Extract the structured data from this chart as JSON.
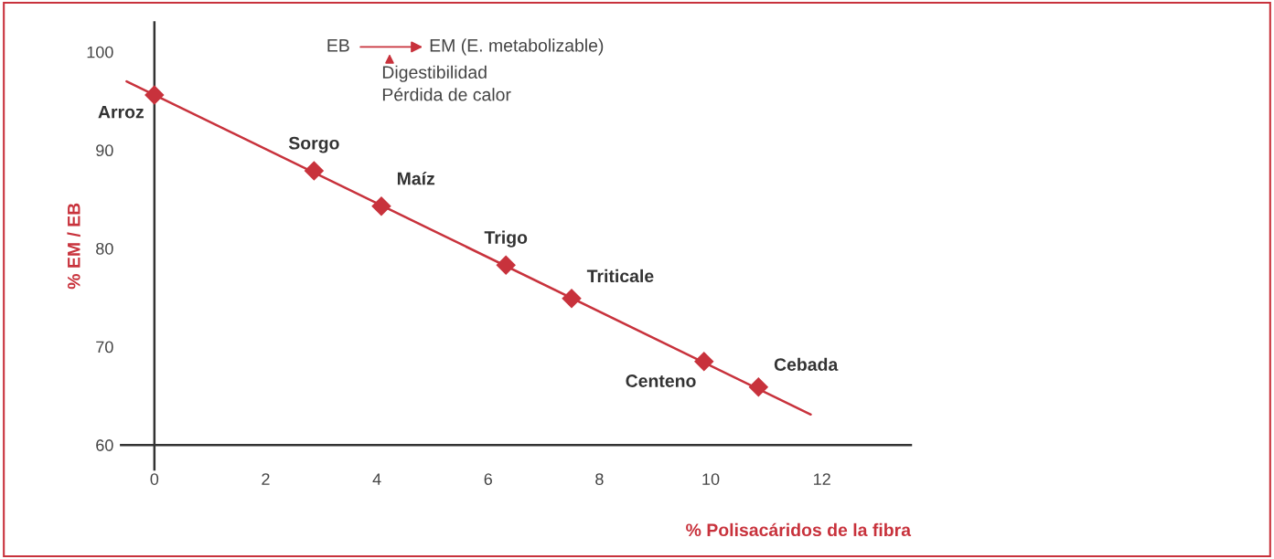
{
  "chart_data": {
    "type": "scatter",
    "xlabel": "% Polisacáridos de la fibra",
    "ylabel": "% EM / EB",
    "xlim": [
      -0.6,
      13.6
    ],
    "ylim": [
      57.5,
      103
    ],
    "xticks": [
      0,
      2,
      4,
      6,
      8,
      10,
      12
    ],
    "yticks": [
      60,
      70,
      80,
      90,
      100
    ],
    "grid": false,
    "marker": "diamond",
    "series": [
      {
        "color": "#c8323c",
        "x": [
          0,
          2.87,
          4.08,
          6.32,
          7.5,
          9.88,
          10.86
        ],
        "values": [
          95.6,
          87.9,
          84.3,
          78.3,
          74.9,
          68.5,
          65.9
        ]
      },
      {
        "type": "line",
        "color": "#c8323c",
        "marker": "none",
        "line_style": "solid",
        "x": [
          -0.5,
          11.8
        ],
        "values": [
          97.0,
          63.1
        ]
      }
    ],
    "annotations": [
      {
        "text": "Arroz",
        "x": 0,
        "y": 95.6
      },
      {
        "text": "Sorgo",
        "x": 2.87,
        "y": 87.9
      },
      {
        "text": "Maíz",
        "x": 4.08,
        "y": 84.3
      },
      {
        "text": "Trigo",
        "x": 6.32,
        "y": 78.3
      },
      {
        "text": "Triticale",
        "x": 7.5,
        "y": 74.9
      },
      {
        "text": "Centeno",
        "x": 9.88,
        "y": 68.5
      },
      {
        "text": "Cebada",
        "x": 10.86,
        "y": 65.9
      },
      "EB",
      "EM (E. metabolizable)",
      "Digestibilidad",
      "Pérdida de calor"
    ]
  }
}
